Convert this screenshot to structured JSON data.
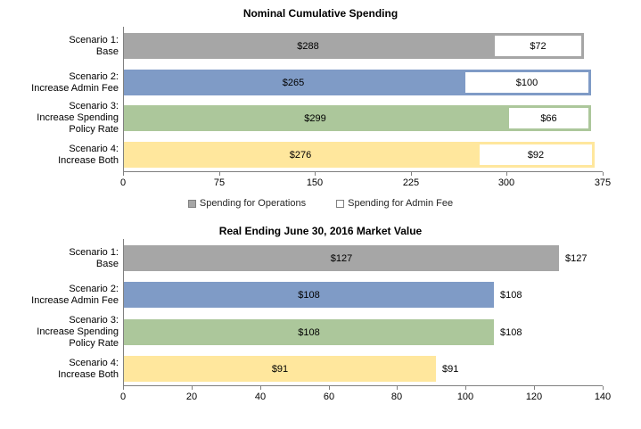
{
  "colors": {
    "bar_gray": "#A6A6A6",
    "bar_blue": "#7F9BC6",
    "bar_green": "#ACC79B",
    "bar_yellow": "#FFE79D",
    "axis": "#808080",
    "admin_fill": "#FFFFFF",
    "text": "#000000"
  },
  "chart_data": [
    {
      "type": "bar",
      "orientation": "horizontal",
      "title": "Nominal Cumulative Spending",
      "categories": [
        [
          "Scenario 1:",
          "Base"
        ],
        [
          "Scenario 2:",
          "Increase Admin Fee"
        ],
        [
          "Scenario 3:",
          "Increase Spending",
          "Policy Rate"
        ],
        [
          "Scenario 4:",
          "Increase Both"
        ]
      ],
      "series": [
        {
          "name": "Spending for Operations",
          "values": [
            288,
            265,
            299,
            276
          ],
          "labels": [
            "$288",
            "$265",
            "$299",
            "$276"
          ]
        },
        {
          "name": "Spending for Admin Fee",
          "values": [
            72,
            100,
            66,
            92
          ],
          "labels": [
            "$72",
            "$100",
            "$66",
            "$92"
          ]
        }
      ],
      "bar_colors": [
        "#A6A6A6",
        "#7F9BC6",
        "#ACC79B",
        "#FFE79D"
      ],
      "xlim": [
        0,
        375
      ],
      "ticks": [
        "0",
        "75",
        "150",
        "225",
        "300",
        "375"
      ],
      "grid": false,
      "legend_position": "bottom"
    },
    {
      "type": "bar",
      "orientation": "horizontal",
      "title": "Real Ending June 30, 2016 Market Value",
      "categories": [
        [
          "Scenario 1:",
          "Base"
        ],
        [
          "Scenario 2:",
          "Increase Admin Fee"
        ],
        [
          "Scenario 3:",
          "Increase Spending",
          "Policy Rate"
        ],
        [
          "Scenario 4:",
          "Increase Both"
        ]
      ],
      "series": [
        {
          "name": "Market Value",
          "values": [
            127,
            108,
            108,
            91
          ],
          "labels": [
            "$127",
            "$108",
            "$108",
            "$91"
          ]
        }
      ],
      "bar_colors": [
        "#A6A6A6",
        "#7F9BC6",
        "#ACC79B",
        "#FFE79D"
      ],
      "xlim": [
        0,
        140
      ],
      "ticks": [
        "0",
        "20",
        "40",
        "60",
        "80",
        "100",
        "120",
        "140"
      ],
      "grid": false,
      "legend_position": "none"
    }
  ]
}
